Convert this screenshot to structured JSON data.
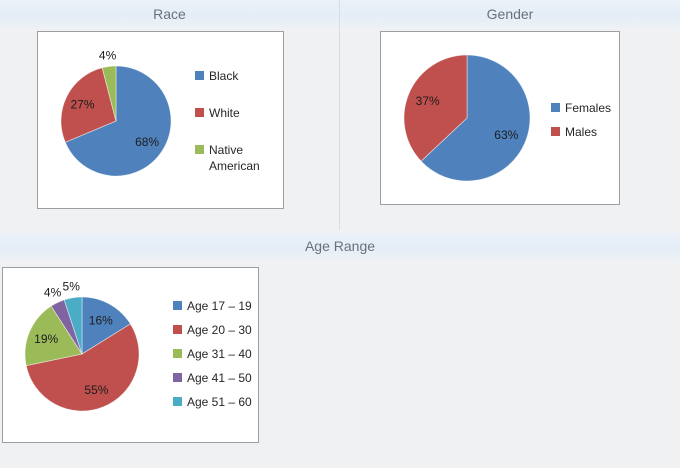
{
  "page": {
    "background": "#eff1f3",
    "band_color": "#e5edf8",
    "title_color": "#6b717a",
    "chart_box_border": "#9b9ea2"
  },
  "sections": {
    "race": {
      "title": "Race"
    },
    "gender": {
      "title": "Gender"
    },
    "age": {
      "title": "Age Range"
    }
  },
  "chart_data": [
    {
      "type": "pie",
      "title": "Race",
      "labels": [
        "Black",
        "White",
        "Native American"
      ],
      "values": [
        68,
        27,
        4
      ],
      "data_labels": [
        "68%",
        "27%",
        "4%"
      ],
      "colors": [
        "#4f81bd",
        "#c0504d",
        "#9bbb59"
      ],
      "legend_position": "right",
      "start_angle": "top",
      "direction": "clockwise"
    },
    {
      "type": "pie",
      "title": "Gender",
      "labels": [
        "Females",
        "Males"
      ],
      "values": [
        63,
        37
      ],
      "data_labels": [
        "63%",
        "37%"
      ],
      "colors": [
        "#4f81bd",
        "#c0504d"
      ],
      "legend_position": "right",
      "start_angle": "top",
      "direction": "clockwise"
    },
    {
      "type": "pie",
      "title": "Age Range",
      "labels": [
        "Age 17 – 19",
        "Age 20 – 30",
        "Age 31 – 40",
        "Age 41 – 50",
        "Age 51 – 60"
      ],
      "values": [
        16,
        55,
        19,
        4,
        5
      ],
      "data_labels": [
        "16%",
        "55%",
        "19%",
        "4%",
        "5%"
      ],
      "colors": [
        "#4f81bd",
        "#c0504d",
        "#9bbb59",
        "#8064a2",
        "#4bacc6"
      ],
      "legend_position": "right",
      "start_angle": "top",
      "direction": "clockwise"
    }
  ]
}
